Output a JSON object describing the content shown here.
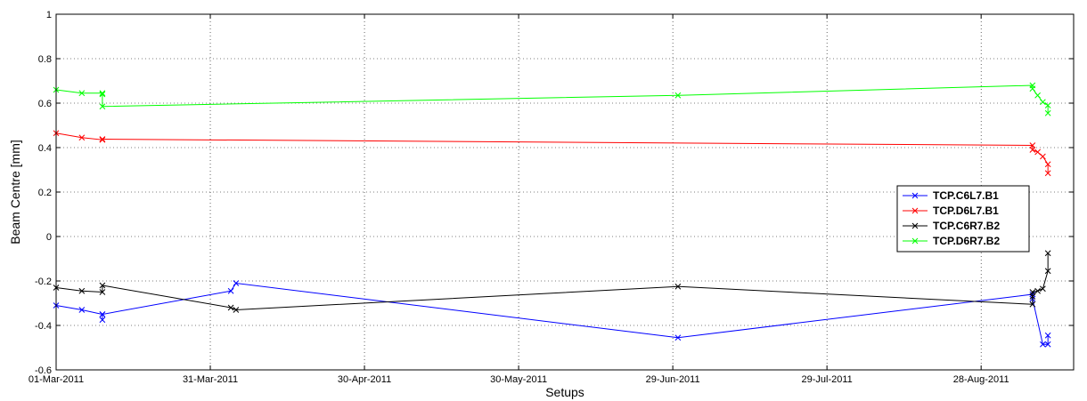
{
  "chart_data": {
    "type": "line",
    "xlabel": "Setups",
    "ylabel": "Beam Centre [mm]",
    "xlim": [
      "2011-03-01",
      "2011-09-15"
    ],
    "ylim": [
      -0.6,
      1.0
    ],
    "xticks": [
      "2011-03-01",
      "2011-03-31",
      "2011-04-30",
      "2011-05-30",
      "2011-06-29",
      "2011-07-29",
      "2011-08-28"
    ],
    "xtick_labels": [
      "01-Mar-2011",
      "31-Mar-2011",
      "30-Apr-2011",
      "30-May-2011",
      "29-Jun-2011",
      "29-Jul-2011",
      "28-Aug-2011"
    ],
    "yticks": [
      -0.6,
      -0.4,
      -0.2,
      0,
      0.2,
      0.4,
      0.6,
      0.8,
      1
    ],
    "ytick_labels": [
      "-0.6",
      "-0.4",
      "-0.2",
      "0",
      "0.2",
      "0.4",
      "0.6",
      "0.8",
      "1"
    ],
    "grid": true,
    "legend_position": "right",
    "series": [
      {
        "name": "TCP.C6L7.B1",
        "color": "#0000ff",
        "x": [
          "2011-03-01",
          "2011-03-06",
          "2011-03-10",
          "2011-03-10",
          "2011-03-10",
          "2011-04-04",
          "2011-04-05",
          "2011-06-30",
          "2011-09-07",
          "2011-09-07",
          "2011-09-09",
          "2011-09-10",
          "2011-09-10"
        ],
        "y": [
          -0.31,
          -0.33,
          -0.35,
          -0.375,
          -0.35,
          -0.245,
          -0.21,
          -0.455,
          -0.26,
          -0.28,
          -0.485,
          -0.485,
          -0.445
        ]
      },
      {
        "name": "TCP.D6L7.B1",
        "color": "#ff0000",
        "x": [
          "2011-03-01",
          "2011-03-06",
          "2011-03-10",
          "2011-03-10",
          "2011-09-07",
          "2011-09-07",
          "2011-09-08",
          "2011-09-09",
          "2011-09-10",
          "2011-09-10"
        ],
        "y": [
          0.465,
          0.445,
          0.435,
          0.438,
          0.41,
          0.39,
          0.38,
          0.36,
          0.325,
          0.285
        ]
      },
      {
        "name": "TCP.C6R7.B2",
        "color": "#000000",
        "x": [
          "2011-03-01",
          "2011-03-06",
          "2011-03-10",
          "2011-03-10",
          "2011-04-04",
          "2011-04-05",
          "2011-06-30",
          "2011-09-07",
          "2011-09-07",
          "2011-09-07",
          "2011-09-08",
          "2011-09-09",
          "2011-09-10",
          "2011-09-10"
        ],
        "y": [
          -0.23,
          -0.245,
          -0.25,
          -0.22,
          -0.32,
          -0.33,
          -0.225,
          -0.305,
          -0.27,
          -0.25,
          -0.245,
          -0.235,
          -0.155,
          -0.075
        ]
      },
      {
        "name": "TCP.D6R7.B2",
        "color": "#00ff00",
        "x": [
          "2011-03-01",
          "2011-03-06",
          "2011-03-10",
          "2011-03-10",
          "2011-03-10",
          "2011-06-30",
          "2011-09-07",
          "2011-09-07",
          "2011-09-08",
          "2011-09-09",
          "2011-09-10",
          "2011-09-10"
        ],
        "y": [
          0.66,
          0.645,
          0.645,
          0.64,
          0.585,
          0.635,
          0.68,
          0.665,
          0.635,
          0.605,
          0.59,
          0.555
        ]
      }
    ]
  }
}
